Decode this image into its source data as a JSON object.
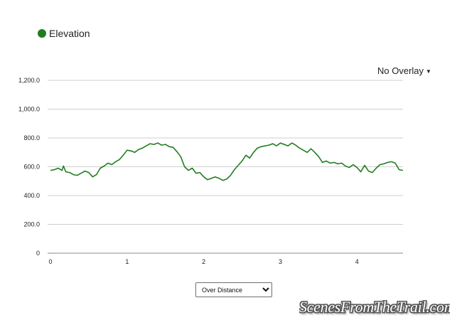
{
  "legend": {
    "label": "Elevation",
    "color": "#1e7d1e",
    "icon": "circle-icon"
  },
  "overlay": {
    "selected": "No Overlay",
    "icon": "caret-down-icon"
  },
  "distance_select": {
    "selected": "Over Distance",
    "options": [
      "Over Distance"
    ]
  },
  "watermark": "ScenesFromTheTrail.com",
  "chart_data": {
    "type": "line",
    "title": "",
    "xlabel": "",
    "ylabel": "",
    "xlim": [
      0,
      4.6
    ],
    "ylim": [
      0,
      1200
    ],
    "grid": true,
    "x_ticks": [
      0,
      1,
      2,
      3,
      4
    ],
    "x_tick_labels": [
      "0",
      "1",
      "2",
      "3",
      "4"
    ],
    "y_ticks": [
      0,
      200,
      400,
      600,
      800,
      1000,
      1200
    ],
    "y_tick_labels": [
      "0",
      "200.0",
      "400.0",
      "600.0",
      "800.0",
      "1,000.0",
      "1,200.0"
    ],
    "series": [
      {
        "name": "Elevation",
        "color": "#1e7d1e",
        "x": [
          0,
          0.05,
          0.1,
          0.15,
          0.17,
          0.2,
          0.25,
          0.3,
          0.35,
          0.4,
          0.45,
          0.5,
          0.55,
          0.6,
          0.65,
          0.7,
          0.75,
          0.8,
          0.85,
          0.9,
          0.95,
          1.0,
          1.05,
          1.1,
          1.15,
          1.2,
          1.25,
          1.3,
          1.35,
          1.4,
          1.45,
          1.5,
          1.55,
          1.6,
          1.65,
          1.7,
          1.75,
          1.8,
          1.85,
          1.9,
          1.95,
          2.0,
          2.05,
          2.1,
          2.15,
          2.2,
          2.25,
          2.3,
          2.35,
          2.4,
          2.45,
          2.5,
          2.55,
          2.6,
          2.65,
          2.7,
          2.75,
          2.8,
          2.85,
          2.9,
          2.95,
          3.0,
          3.05,
          3.1,
          3.15,
          3.2,
          3.25,
          3.3,
          3.35,
          3.4,
          3.45,
          3.5,
          3.55,
          3.6,
          3.65,
          3.7,
          3.75,
          3.8,
          3.85,
          3.9,
          3.95,
          4.0,
          4.05,
          4.1,
          4.15,
          4.2,
          4.25,
          4.3,
          4.35,
          4.4,
          4.45,
          4.5,
          4.55,
          4.6
        ],
        "y": [
          575,
          580,
          590,
          575,
          605,
          565,
          560,
          545,
          540,
          555,
          570,
          560,
          530,
          545,
          590,
          605,
          625,
          615,
          635,
          650,
          680,
          715,
          710,
          700,
          720,
          730,
          745,
          760,
          755,
          765,
          750,
          755,
          740,
          735,
          705,
          670,
          600,
          575,
          590,
          555,
          560,
          530,
          510,
          520,
          530,
          520,
          505,
          515,
          540,
          580,
          610,
          640,
          680,
          660,
          700,
          730,
          740,
          745,
          750,
          760,
          745,
          765,
          755,
          745,
          765,
          750,
          730,
          715,
          700,
          725,
          700,
          670,
          630,
          640,
          625,
          630,
          620,
          625,
          605,
          595,
          615,
          595,
          565,
          610,
          570,
          560,
          590,
          615,
          620,
          630,
          635,
          625,
          580,
          575
        ]
      }
    ]
  }
}
